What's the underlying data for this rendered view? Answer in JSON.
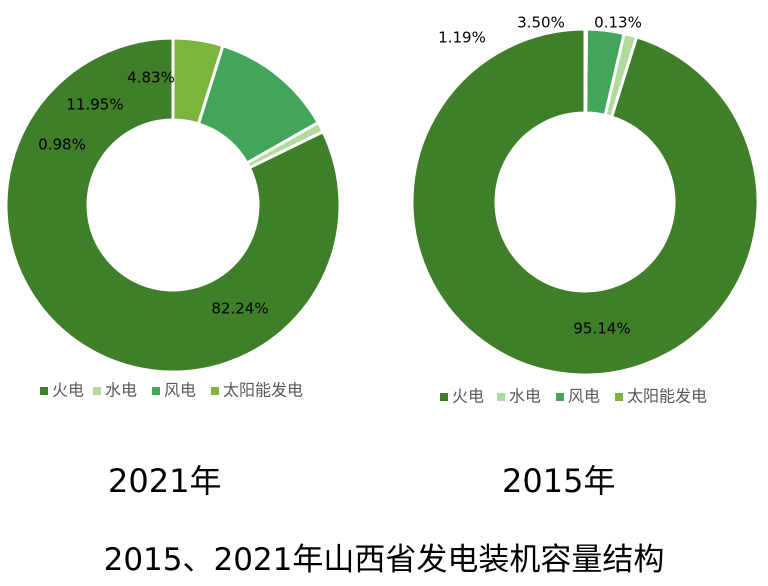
{
  "caption": "2015、2021年山西省发电装机容量结构",
  "chart_data": [
    {
      "type": "pie",
      "title": "2021年",
      "categories": [
        "火电",
        "水电",
        "风电",
        "太阳能发电"
      ],
      "values": [
        82.24,
        0.98,
        11.95,
        4.83
      ],
      "value_labels": [
        "82.24%",
        "0.98%",
        "11.95%",
        "4.83%"
      ],
      "colors": [
        "#3f7f2a",
        "#b3d99c",
        "#43a55a",
        "#7cb53c"
      ],
      "donut": true,
      "legend_position": "bottom"
    },
    {
      "type": "pie",
      "title": "2015年",
      "categories": [
        "火电",
        "水电",
        "风电",
        "太阳能发电"
      ],
      "values": [
        95.14,
        1.19,
        3.5,
        0.13
      ],
      "value_labels": [
        "95.14%",
        "1.19%",
        "3.50%",
        "0.13%"
      ],
      "colors": [
        "#3f7f2a",
        "#b3d99c",
        "#43a55a",
        "#7cb53c"
      ],
      "donut": true,
      "legend_position": "bottom"
    }
  ]
}
